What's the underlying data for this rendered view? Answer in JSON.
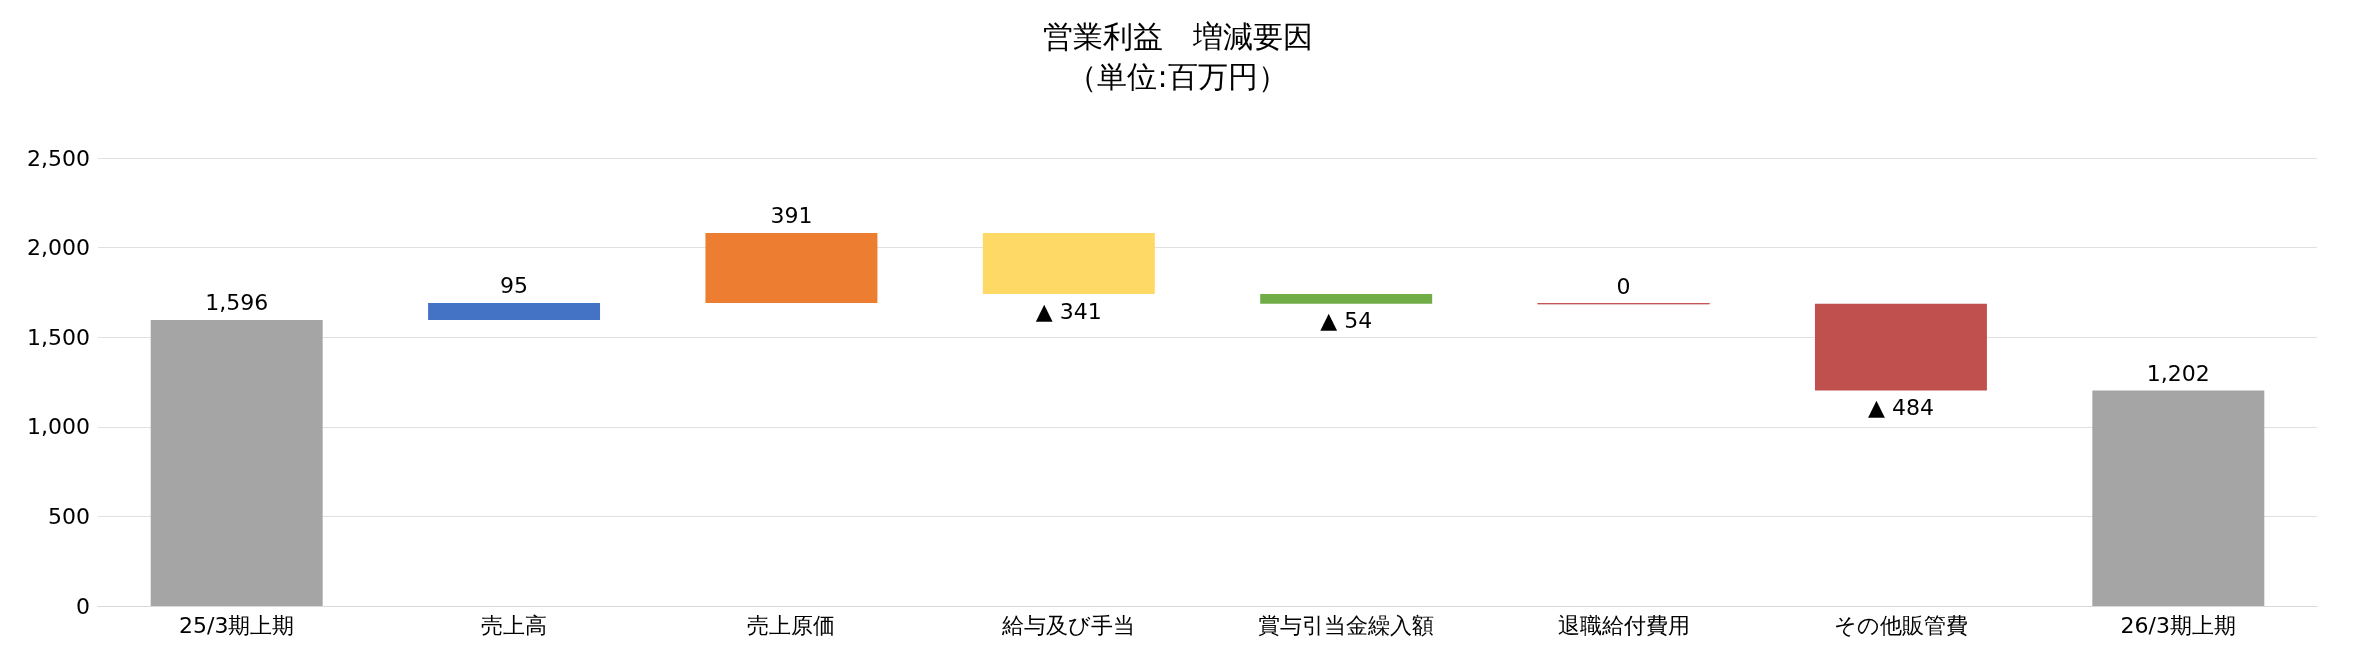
{
  "chart_data": {
    "type": "bar",
    "title": "営業利益　増減要因",
    "subtitle": "（単位:百万円）",
    "categories": [
      "25/3期上期",
      "売上高",
      "売上原価",
      "給与及び手当",
      "賞与引当金繰入額",
      "退職給付費用",
      "その他販管費",
      "26/3期上期"
    ],
    "values": [
      1596,
      95,
      391,
      -341,
      -54,
      0,
      -484,
      1202
    ],
    "base": [
      0,
      1596,
      1691,
      2082,
      1741,
      1687,
      1687,
      0
    ],
    "colors": [
      "#a5a5a5",
      "#4472c4",
      "#ed7d31",
      "#ffd966",
      "#70ad47",
      "#c0504d",
      "#c0504d",
      "#a5a5a5"
    ],
    "value_labels": [
      "1,596",
      "95",
      "391",
      "▲ 341",
      "▲ 54",
      "0",
      "▲ 484",
      "1,202"
    ],
    "ylim": [
      0,
      2500
    ],
    "yticks": [
      0,
      500,
      {
        "value": 1000,
        "label": "1,000"
      },
      {
        "value": 1500,
        "label": "1,500"
      },
      {
        "value": 2000,
        "label": "2,000"
      },
      {
        "value": 2500,
        "label": "2,500"
      }
    ],
    "grid": "y"
  }
}
